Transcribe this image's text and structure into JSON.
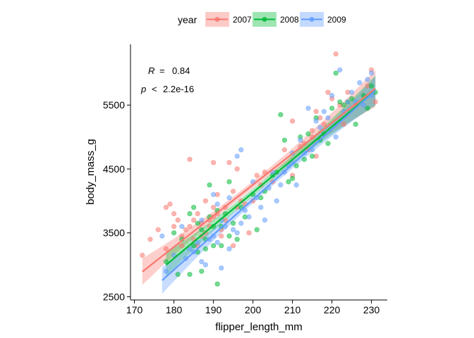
{
  "chart_data": {
    "type": "scatter",
    "xlabel": "flipper_length_mm",
    "ylabel": "body_mass_g",
    "xlim": [
      169,
      234
    ],
    "ylim": [
      2450,
      6450
    ],
    "xticks": [
      170,
      180,
      190,
      200,
      210,
      220,
      230
    ],
    "yticks": [
      2500,
      3500,
      4500,
      5500
    ],
    "grid": false,
    "legend": {
      "title": "year",
      "position": "top"
    },
    "annotations": {
      "r_label": "R",
      "r_eq": "=",
      "r_value": "0.84",
      "p_label": "p",
      "p_op": "<",
      "p_value": "2.2e-16"
    },
    "series": [
      {
        "name": "2007",
        "color": "#F8766D",
        "fit": {
          "x_range": [
            172,
            231
          ],
          "slope": 48.6,
          "intercept": -5467
        },
        "points": [
          [
            172,
            3150
          ],
          [
            174,
            3400
          ],
          [
            176,
            3550
          ],
          [
            178,
            3250
          ],
          [
            178,
            3900
          ],
          [
            179,
            3950
          ],
          [
            180,
            3800
          ],
          [
            180,
            3600
          ],
          [
            181,
            3700
          ],
          [
            182,
            3450
          ],
          [
            182,
            3300
          ],
          [
            183,
            3550
          ],
          [
            184,
            3600
          ],
          [
            184,
            4650
          ],
          [
            185,
            3700
          ],
          [
            185,
            3400
          ],
          [
            186,
            3800
          ],
          [
            186,
            3300
          ],
          [
            187,
            3450
          ],
          [
            187,
            3650
          ],
          [
            188,
            3500
          ],
          [
            188,
            4000
          ],
          [
            189,
            3600
          ],
          [
            189,
            3700
          ],
          [
            190,
            3900
          ],
          [
            190,
            3750
          ],
          [
            190,
            4600
          ],
          [
            191,
            3800
          ],
          [
            191,
            4100
          ],
          [
            192,
            3550
          ],
          [
            192,
            3450
          ],
          [
            193,
            3700
          ],
          [
            193,
            3900
          ],
          [
            194,
            4600
          ],
          [
            195,
            4150
          ],
          [
            195,
            3300
          ],
          [
            196,
            3900
          ],
          [
            196,
            4500
          ],
          [
            197,
            4000
          ],
          [
            198,
            3950
          ],
          [
            199,
            3500
          ],
          [
            200,
            4000
          ],
          [
            201,
            4400
          ],
          [
            202,
            4250
          ],
          [
            203,
            4450
          ],
          [
            205,
            4300
          ],
          [
            208,
            4800
          ],
          [
            210,
            4400
          ],
          [
            210,
            5250
          ],
          [
            212,
            4850
          ],
          [
            213,
            4900
          ],
          [
            214,
            4800
          ],
          [
            215,
            5000
          ],
          [
            215,
            5100
          ],
          [
            216,
            4700
          ],
          [
            216,
            5400
          ],
          [
            217,
            5300
          ],
          [
            218,
            5200
          ],
          [
            219,
            5700
          ],
          [
            220,
            5600
          ],
          [
            221,
            6300
          ],
          [
            222,
            5500
          ],
          [
            223,
            5200
          ],
          [
            224,
            5700
          ],
          [
            226,
            5500
          ],
          [
            229,
            5800
          ],
          [
            230,
            6050
          ],
          [
            231,
            5550
          ]
        ]
      },
      {
        "name": "2008",
        "color": "#00BA38",
        "fit": {
          "x_range": [
            178,
            231
          ],
          "slope": 51.5,
          "intercept": -6168
        },
        "points": [
          [
            178,
            3050
          ],
          [
            180,
            3500
          ],
          [
            181,
            2850
          ],
          [
            182,
            3400
          ],
          [
            184,
            2850
          ],
          [
            184,
            3800
          ],
          [
            185,
            3900
          ],
          [
            185,
            3300
          ],
          [
            186,
            3200
          ],
          [
            186,
            3650
          ],
          [
            187,
            3550
          ],
          [
            187,
            2900
          ],
          [
            188,
            3250
          ],
          [
            188,
            3400
          ],
          [
            189,
            3750
          ],
          [
            189,
            4250
          ],
          [
            190,
            3600
          ],
          [
            190,
            3300
          ],
          [
            191,
            2700
          ],
          [
            191,
            3850
          ],
          [
            192,
            3600
          ],
          [
            192,
            3300
          ],
          [
            193,
            3800
          ],
          [
            194,
            3450
          ],
          [
            194,
            4300
          ],
          [
            195,
            3650
          ],
          [
            196,
            3400
          ],
          [
            197,
            3900
          ],
          [
            198,
            3750
          ],
          [
            200,
            4100
          ],
          [
            201,
            3550
          ],
          [
            202,
            4050
          ],
          [
            203,
            4150
          ],
          [
            205,
            4400
          ],
          [
            206,
            4450
          ],
          [
            207,
            5350
          ],
          [
            208,
            4950
          ],
          [
            209,
            4300
          ],
          [
            210,
            4350
          ],
          [
            211,
            4550
          ],
          [
            212,
            5000
          ],
          [
            213,
            4650
          ],
          [
            214,
            5050
          ],
          [
            215,
            4700
          ],
          [
            216,
            5300
          ],
          [
            217,
            4950
          ],
          [
            218,
            5050
          ],
          [
            219,
            4900
          ],
          [
            220,
            5450
          ],
          [
            221,
            6000
          ],
          [
            222,
            5550
          ],
          [
            223,
            5500
          ],
          [
            224,
            5550
          ],
          [
            225,
            5600
          ],
          [
            226,
            5200
          ],
          [
            228,
            5650
          ],
          [
            229,
            5450
          ],
          [
            230,
            5800
          ],
          [
            231,
            5700
          ]
        ]
      },
      {
        "name": "2009",
        "color": "#619CFF",
        "fit": {
          "x_range": [
            177,
            231
          ],
          "slope": 55.0,
          "intercept": -6978
        },
        "points": [
          [
            177,
            3450
          ],
          [
            178,
            2900
          ],
          [
            180,
            3150
          ],
          [
            182,
            3600
          ],
          [
            183,
            3100
          ],
          [
            184,
            3250
          ],
          [
            185,
            3200
          ],
          [
            186,
            3350
          ],
          [
            187,
            3050
          ],
          [
            187,
            3700
          ],
          [
            188,
            3000
          ],
          [
            189,
            3400
          ],
          [
            190,
            3450
          ],
          [
            190,
            4100
          ],
          [
            191,
            3350
          ],
          [
            191,
            3950
          ],
          [
            192,
            3700
          ],
          [
            192,
            2950
          ],
          [
            193,
            3600
          ],
          [
            194,
            3250
          ],
          [
            194,
            4050
          ],
          [
            195,
            3550
          ],
          [
            196,
            3500
          ],
          [
            196,
            4700
          ],
          [
            197,
            4800
          ],
          [
            197,
            3650
          ],
          [
            198,
            3850
          ],
          [
            199,
            3750
          ],
          [
            200,
            4300
          ],
          [
            201,
            4050
          ],
          [
            202,
            3900
          ],
          [
            203,
            3700
          ],
          [
            204,
            4200
          ],
          [
            205,
            4450
          ],
          [
            206,
            4000
          ],
          [
            207,
            4250
          ],
          [
            208,
            4450
          ],
          [
            209,
            4550
          ],
          [
            210,
            4750
          ],
          [
            210,
            4600
          ],
          [
            211,
            4250
          ],
          [
            212,
            4950
          ],
          [
            213,
            4750
          ],
          [
            214,
            5450
          ],
          [
            215,
            4800
          ],
          [
            216,
            5250
          ],
          [
            217,
            5150
          ],
          [
            218,
            5400
          ],
          [
            219,
            5300
          ],
          [
            220,
            5650
          ],
          [
            221,
            5000
          ],
          [
            222,
            6050
          ],
          [
            223,
            5400
          ],
          [
            224,
            5550
          ],
          [
            225,
            5700
          ],
          [
            226,
            5550
          ],
          [
            227,
            5850
          ],
          [
            228,
            5500
          ],
          [
            229,
            5900
          ],
          [
            230,
            5650
          ],
          [
            230,
            6000
          ]
        ]
      }
    ]
  }
}
